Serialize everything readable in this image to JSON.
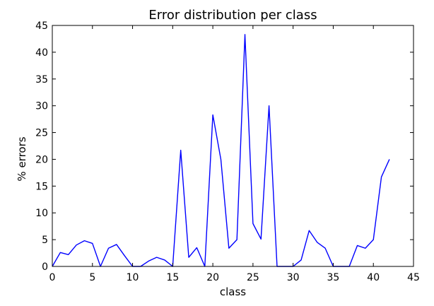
{
  "chart_data": {
    "type": "line",
    "title": "Error distribution per class",
    "xlabel": "class",
    "ylabel": "% errors",
    "xlim": [
      0,
      45
    ],
    "ylim": [
      0,
      45
    ],
    "xticks": [
      0,
      5,
      10,
      15,
      20,
      25,
      30,
      35,
      40,
      45
    ],
    "yticks": [
      0,
      5,
      10,
      15,
      20,
      25,
      30,
      35,
      40,
      45
    ],
    "grid": false,
    "series": [
      {
        "color": "#0000ff",
        "x": [
          0,
          1,
          2,
          3,
          4,
          5,
          6,
          7,
          8,
          9,
          10,
          11,
          12,
          13,
          14,
          15,
          16,
          17,
          18,
          19,
          20,
          21,
          22,
          23,
          24,
          25,
          26,
          27,
          28,
          29,
          30,
          31,
          32,
          33,
          34,
          35,
          36,
          37,
          38,
          39,
          40,
          41,
          42
        ],
        "y": [
          0,
          2.6,
          2.2,
          4.0,
          4.8,
          4.3,
          0,
          3.4,
          4.1,
          2.0,
          0,
          0,
          1.0,
          1.7,
          1.2,
          0,
          21.7,
          1.7,
          3.5,
          0,
          28.3,
          20.0,
          3.4,
          5.0,
          43.3,
          8.0,
          5.1,
          30.0,
          0,
          0,
          0,
          1.2,
          6.7,
          4.5,
          3.4,
          0,
          0,
          0,
          3.9,
          3.4,
          5.0,
          16.7,
          20.0
        ]
      }
    ]
  }
}
